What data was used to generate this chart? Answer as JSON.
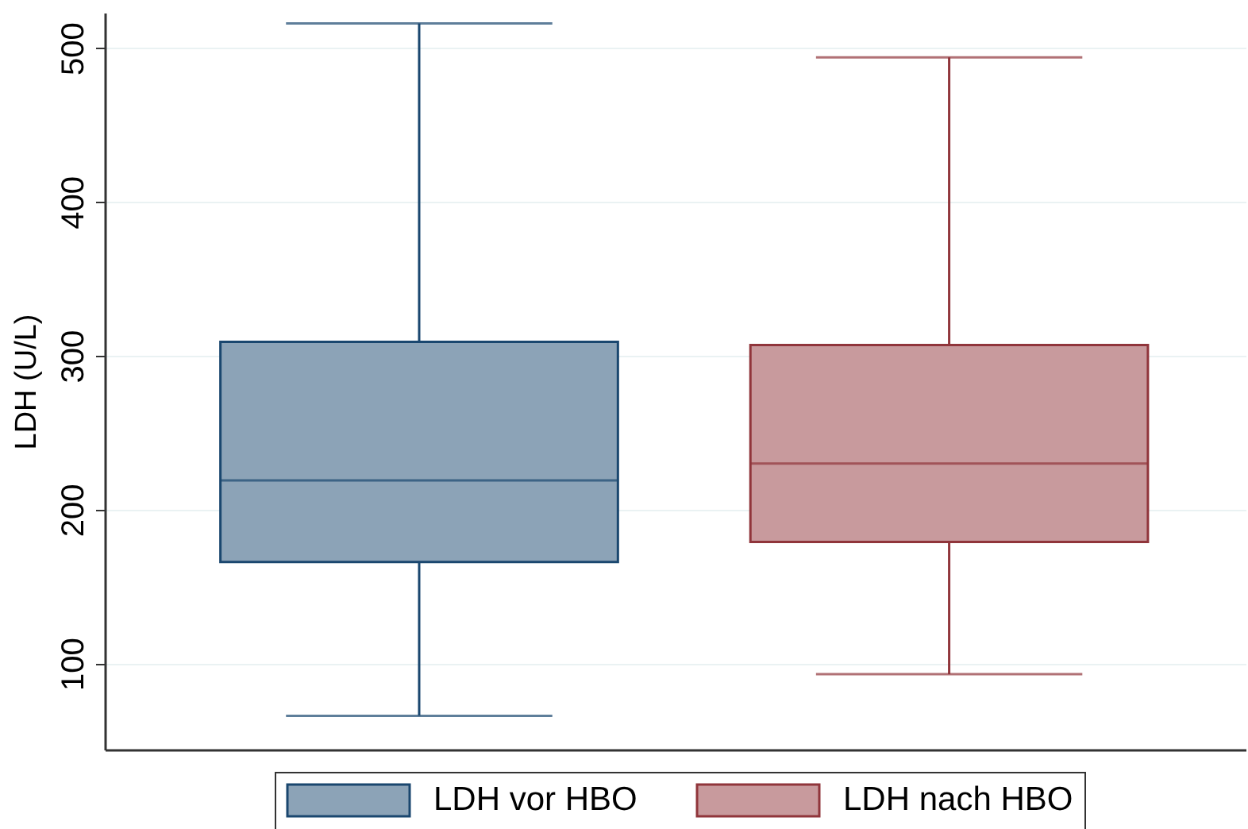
{
  "chart_data": {
    "type": "box",
    "ylabel": "LDH (U/L)",
    "categories": [
      null
    ],
    "series": [
      {
        "name": "LDH vor HBO",
        "color": "#1a476f",
        "boxes": [
          {
            "low": 66,
            "q1": 166,
            "median": 219,
            "q3": 309,
            "high": 516
          }
        ]
      },
      {
        "name": "LDH nach HBO",
        "color": "#90353b",
        "boxes": [
          {
            "low": 93,
            "q1": 179,
            "median": 230,
            "q3": 307,
            "high": 494
          }
        ]
      }
    ],
    "ylim": [
      44,
      523
    ],
    "yticks": [
      100,
      200,
      300,
      400,
      500
    ],
    "grid": "y",
    "legend": "bottom",
    "tick_labels": "y"
  }
}
